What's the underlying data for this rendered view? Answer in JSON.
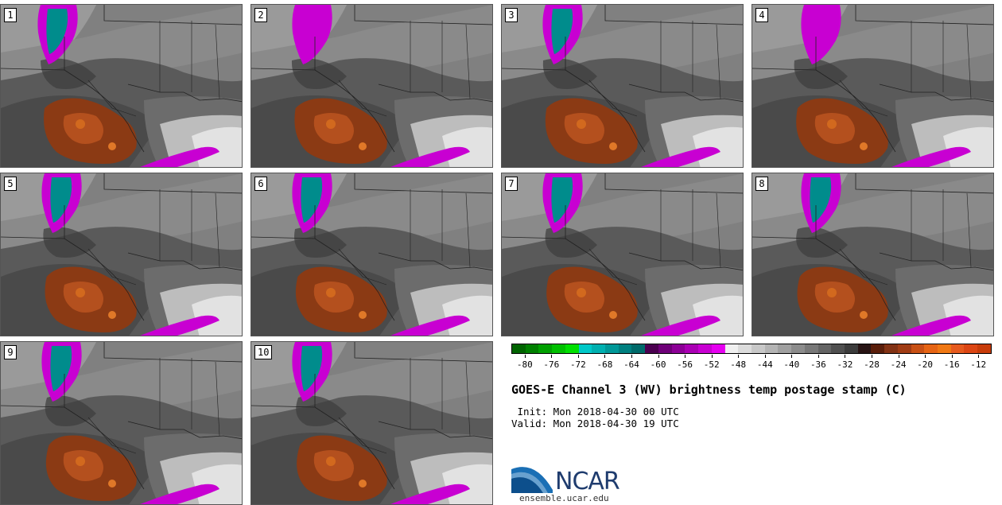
{
  "panels": [
    {
      "label": "1"
    },
    {
      "label": "2"
    },
    {
      "label": "3"
    },
    {
      "label": "4"
    },
    {
      "label": "5"
    },
    {
      "label": "6"
    },
    {
      "label": "7"
    },
    {
      "label": "8"
    },
    {
      "label": "9"
    },
    {
      "label": "10"
    }
  ],
  "colorbar": {
    "colors": [
      "#006400",
      "#008000",
      "#00a000",
      "#00c000",
      "#00e000",
      "#00c8c8",
      "#00b0b0",
      "#009898",
      "#008080",
      "#006a6a",
      "#4b0050",
      "#6e0078",
      "#8c0096",
      "#aa00b4",
      "#c800d2",
      "#e600f0",
      "#f0f0f0",
      "#dcdcdc",
      "#c8c8c8",
      "#b4b4b4",
      "#a0a0a0",
      "#8c8c8c",
      "#787878",
      "#646464",
      "#505050",
      "#3c3c3c",
      "#281414",
      "#5a1e0a",
      "#823214",
      "#a03c14",
      "#c85014",
      "#e66414",
      "#f07814",
      "#e65a1e",
      "#dc4614",
      "#c83c0a"
    ],
    "ticks": [
      "-80",
      "-76",
      "-72",
      "-68",
      "-64",
      "-60",
      "-56",
      "-52",
      "-48",
      "-44",
      "-40",
      "-36",
      "-32",
      "-28",
      "-24",
      "-20",
      "-16",
      "-12"
    ],
    "min": -82,
    "max": -10
  },
  "title": "GOES-E Channel 3 (WV) brightness temp postage stamp (C)",
  "init": " Init: Mon 2018-04-30 00 UTC",
  "valid": "Valid: Mon 2018-04-30 19 UTC",
  "logo_text": "NCAR",
  "logo_url": "ensemble.ucar.edu"
}
